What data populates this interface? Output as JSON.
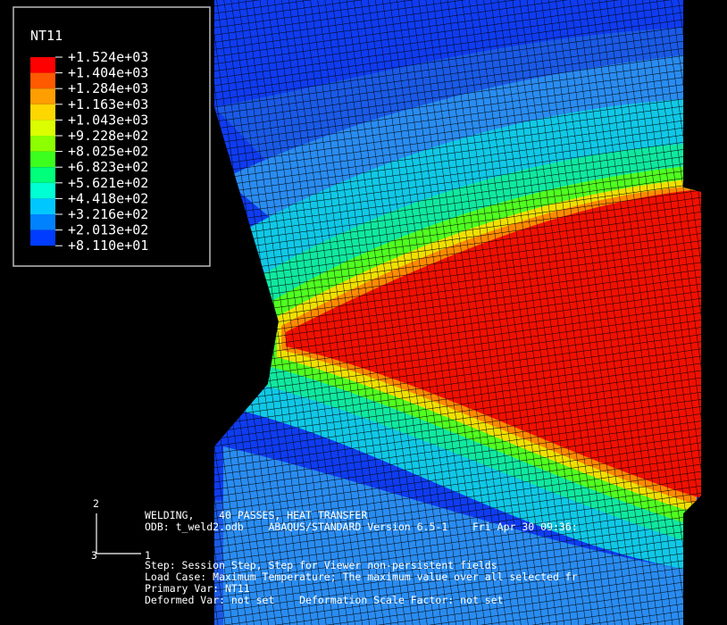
{
  "legend": {
    "title": "NT11",
    "labels": [
      "+1.524e+03",
      "+1.404e+03",
      "+1.284e+03",
      "+1.163e+03",
      "+1.043e+03",
      "+9.228e+02",
      "+8.025e+02",
      "+6.823e+02",
      "+5.621e+02",
      "+4.418e+02",
      "+3.216e+02",
      "+2.013e+02",
      "+8.110e+01"
    ],
    "colors": [
      "#ff0000",
      "#ff5a00",
      "#ff9e00",
      "#ffd700",
      "#dcff00",
      "#8cff00",
      "#3cff1e",
      "#00ff7a",
      "#00ffd2",
      "#00c8ff",
      "#0082ff",
      "#003cff"
    ]
  },
  "triad": {
    "axis_y": "2",
    "axis_z": "3",
    "axis_x": "1"
  },
  "info": {
    "lines": [
      "WELDING,    40 PASSES, HEAT TRANSFER",
      "ODB: t_weld2.odb    ABAQUS/STANDARD Version 6.5-1    Fri Apr 30 09:36:"
    ],
    "status": [
      "Step: Session Step, Step for Viewer non-persistent fields",
      "Load Case: Maximum Temperature; The maximum value over all selected fr",
      "Primary Var: NT11",
      "Deformed Var: not set    Deformation Scale Factor: not set"
    ]
  }
}
